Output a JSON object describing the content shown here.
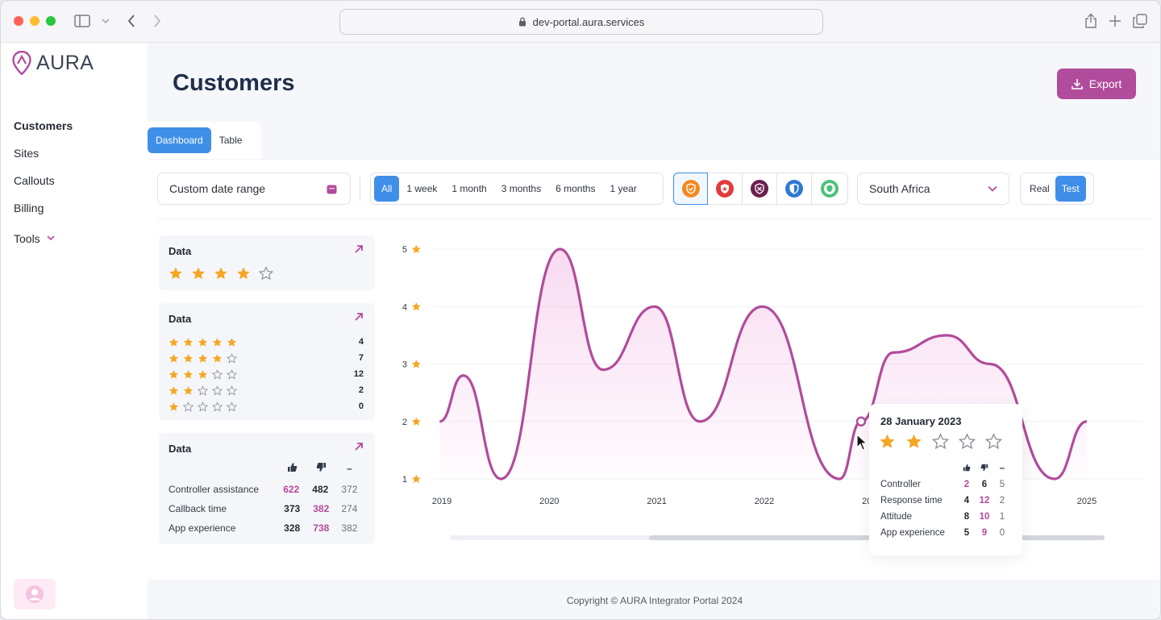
{
  "browser": {
    "url": "dev-portal.aura.services"
  },
  "sidebar": {
    "logo": "AURA",
    "items": [
      {
        "label": "Customers"
      },
      {
        "label": "Sites"
      },
      {
        "label": "Callouts"
      },
      {
        "label": "Billing"
      },
      {
        "label": "Tools"
      }
    ]
  },
  "header": {
    "title": "Customers",
    "export_label": "Export"
  },
  "tabs": [
    {
      "label": "Dashboard"
    },
    {
      "label": "Table"
    }
  ],
  "filters": {
    "date_placeholder": "Custom date range",
    "ranges": [
      "All",
      "1 week",
      "1 month",
      "3 months",
      "6 months",
      "1 year"
    ],
    "country": "South Africa",
    "modes": [
      "Real",
      "Test"
    ]
  },
  "cards": [
    {
      "title": "Data",
      "rating": 4
    },
    {
      "title": "Data",
      "breakdown": [
        {
          "stars": 5,
          "count": "4"
        },
        {
          "stars": 4,
          "count": "7"
        },
        {
          "stars": 3,
          "count": "12"
        },
        {
          "stars": 2,
          "count": "2"
        },
        {
          "stars": 1,
          "count": "0"
        }
      ]
    },
    {
      "title": "Data",
      "neutral_symbol": "–",
      "rows": [
        {
          "label": "Controller assistance",
          "up": "622",
          "down": "482",
          "neutral": "372"
        },
        {
          "label": "Callback time",
          "up": "373",
          "down": "382",
          "neutral": "274"
        },
        {
          "label": "App experience",
          "up": "328",
          "down": "738",
          "neutral": "382"
        }
      ]
    }
  ],
  "chart_data": {
    "type": "line",
    "title": "",
    "xlabel": "",
    "ylabel": "Rating",
    "x_ticks": [
      "2019",
      "2020",
      "2021",
      "2022",
      "2023",
      "2024",
      "2025"
    ],
    "y_ticks": [
      "1",
      "2",
      "3",
      "4",
      "5"
    ],
    "ylim": [
      1,
      5
    ],
    "series": [
      {
        "name": "Rating",
        "x": [
          2018.98,
          2019.2,
          2019.55,
          2020.1,
          2020.5,
          2020.98,
          2021.4,
          2021.98,
          2022.7,
          2022.9,
          2023.2,
          2023.7,
          2024.1,
          2024.7,
          2025.0
        ],
        "y": [
          2.0,
          2.8,
          1.0,
          5.0,
          2.9,
          4.0,
          2.0,
          4.0,
          1.0,
          2.0,
          3.2,
          3.5,
          3.0,
          1.0,
          2.0
        ]
      }
    ],
    "highlight": {
      "x": 2022.9,
      "y": 2.0
    }
  },
  "tooltip": {
    "date": "28 January 2023",
    "rating": 2,
    "neutral_symbol": "–",
    "rows": [
      {
        "label": "Controller",
        "up": "2",
        "down": "6",
        "neutral": "5"
      },
      {
        "label": "Response time",
        "up": "4",
        "down": "12",
        "neutral": "2"
      },
      {
        "label": "Attitude",
        "up": "8",
        "down": "10",
        "neutral": "1"
      },
      {
        "label": "App experience",
        "up": "5",
        "down": "9",
        "neutral": "0"
      }
    ]
  },
  "footer": {
    "copyright": "Copyright © AURA Integrator Portal 2024"
  },
  "colors": {
    "accent": "#b14b9c",
    "primary": "#3f8fe8",
    "star": "#f5a623"
  }
}
